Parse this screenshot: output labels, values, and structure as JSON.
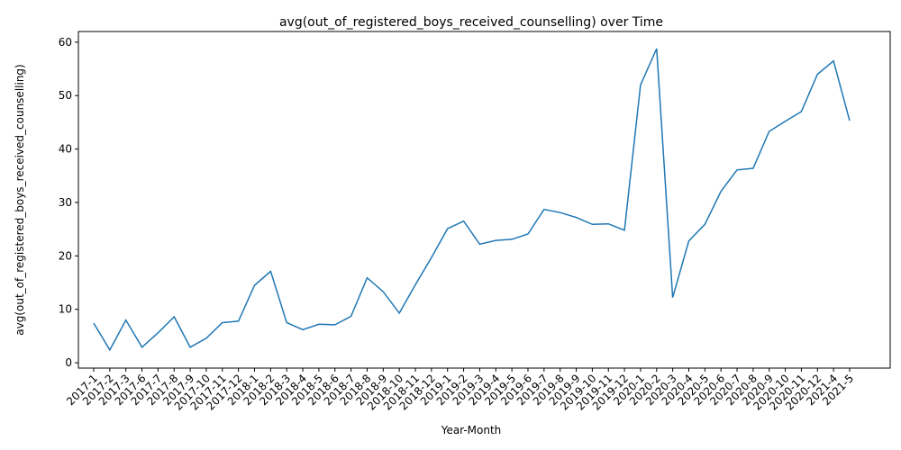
{
  "chart_data": {
    "type": "line",
    "title": "avg(out_of_registered_boys_received_counselling) over Time",
    "xlabel": "Year-Month",
    "ylabel": "avg(out_of_registered_boys_received_counselling)",
    "ylim": [
      -1,
      62
    ],
    "yticks": [
      0,
      10,
      20,
      30,
      40,
      50,
      60
    ],
    "grid": false,
    "legend": "none",
    "line_color": "#1f77b4",
    "categories": [
      "2017-1",
      "2017-2",
      "2017-3",
      "2017-6",
      "2017-7",
      "2017-8",
      "2017-9",
      "2017-10",
      "2017-11",
      "2017-12",
      "2018-1",
      "2018-2",
      "2018-3",
      "2018-4",
      "2018-5",
      "2018-6",
      "2018-7",
      "2018-8",
      "2018-9",
      "2018-10",
      "2018-11",
      "2018-12",
      "2019-1",
      "2019-2",
      "2019-3",
      "2019-4",
      "2019-5",
      "2019-6",
      "2019-7",
      "2019-8",
      "2019-9",
      "2019-10",
      "2019-11",
      "2019-12",
      "2020-1",
      "2020-2",
      "2020-3",
      "2020-4",
      "2020-5",
      "2020-6",
      "2020-7",
      "2020-8",
      "2020-9",
      "2020-10",
      "2020-11",
      "2020-12",
      "2021-4",
      "2021-5"
    ],
    "values": [
      7.4,
      2.4,
      8.0,
      2.9,
      5.6,
      8.6,
      2.9,
      4.6,
      7.5,
      7.8,
      14.5,
      17.1,
      7.5,
      6.2,
      7.2,
      7.1,
      8.7,
      15.9,
      13.3,
      9.3,
      14.6,
      19.7,
      25.1,
      26.5,
      22.2,
      22.9,
      23.1,
      24.1,
      28.7,
      28.1,
      27.2,
      25.9,
      26.0,
      24.8,
      52.0,
      58.8,
      12.2,
      22.8,
      25.9,
      32.1,
      36.1,
      36.4,
      43.3,
      45.2,
      47.0,
      54.0,
      56.5,
      45.3
    ]
  }
}
